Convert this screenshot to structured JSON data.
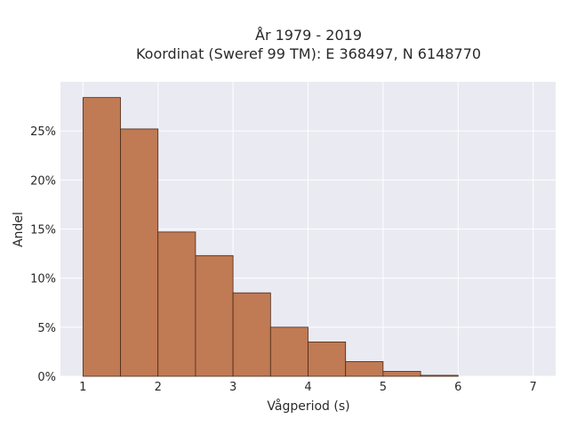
{
  "chart_data": {
    "type": "bar",
    "title": "År 1979 - 2019",
    "subtitle": "Koordinat (Sweref 99 TM): E 368497, N 6148770",
    "xlabel": "Vågperiod (s)",
    "ylabel": "Andel",
    "x_ticks": [
      "1",
      "2",
      "3",
      "4",
      "5",
      "6",
      "7"
    ],
    "y_ticks": [
      "0%",
      "5%",
      "10%",
      "15%",
      "20%",
      "25%"
    ],
    "xlim": [
      0.7,
      7.3
    ],
    "ylim": [
      0,
      0.3
    ],
    "bins": [
      {
        "x0": 1.0,
        "x1": 1.5,
        "value": 0.284
      },
      {
        "x0": 1.5,
        "x1": 2.0,
        "value": 0.252
      },
      {
        "x0": 2.0,
        "x1": 2.5,
        "value": 0.147
      },
      {
        "x0": 2.5,
        "x1": 3.0,
        "value": 0.123
      },
      {
        "x0": 3.0,
        "x1": 3.5,
        "value": 0.085
      },
      {
        "x0": 3.5,
        "x1": 4.0,
        "value": 0.05
      },
      {
        "x0": 4.0,
        "x1": 4.5,
        "value": 0.035
      },
      {
        "x0": 4.5,
        "x1": 5.0,
        "value": 0.015
      },
      {
        "x0": 5.0,
        "x1": 5.5,
        "value": 0.005
      },
      {
        "x0": 5.5,
        "x1": 6.0,
        "value": 0.001
      },
      {
        "x0": 6.0,
        "x1": 6.5,
        "value": 0.0
      },
      {
        "x0": 6.5,
        "x1": 7.0,
        "value": 0.0
      }
    ],
    "grid": true,
    "colors": {
      "bar_fill": "#c07a54",
      "bar_edge": "#4a2a18",
      "plot_bg": "#eaeaf2",
      "grid": "#ffffff"
    }
  }
}
